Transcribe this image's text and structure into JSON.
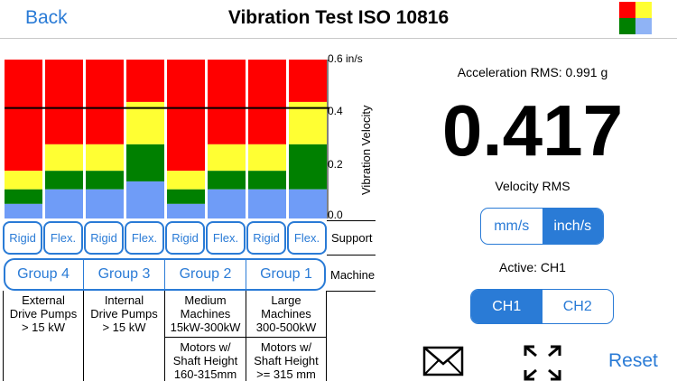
{
  "nav": {
    "back_label": "Back",
    "title": "Vibration Test ISO 10816"
  },
  "colors": {
    "accent": "#2a7bd6",
    "red": "#ff0000",
    "yellow": "#ffff33",
    "green": "#008000",
    "blue": "#6f9cf7"
  },
  "axis": {
    "ticks": [
      "0.6 in/s",
      "0.4",
      "0.2",
      "0.0"
    ],
    "label": "Vibration Velocity",
    "max": 0.6
  },
  "row_labels": {
    "support": "Support",
    "machine": "Machine"
  },
  "supports": [
    "Rigid",
    "Flex.",
    "Rigid",
    "Flex.",
    "Rigid",
    "Flex.",
    "Rigid",
    "Flex."
  ],
  "groups": [
    "Group 4",
    "Group 3",
    "Group 2",
    "Group 1"
  ],
  "group_desc": [
    [
      "External",
      "Drive Pumps",
      "> 15 kW"
    ],
    [
      "Internal",
      "Drive Pumps",
      "> 15 kW"
    ],
    [
      "Medium",
      "Machines",
      "15kW-300kW"
    ],
    [
      "Large",
      "Machines",
      "300-500kW"
    ]
  ],
  "group_desc2": [
    [
      "Motors w/",
      "Shaft Height",
      "160-315mm"
    ],
    [
      "Motors w/",
      "Shaft Height",
      ">= 315 mm"
    ]
  ],
  "chart_data": {
    "type": "bar",
    "unit": "in/s",
    "ylim": [
      0,
      0.6
    ],
    "measured_line": 0.417,
    "columns": [
      {
        "blue": 0.055,
        "green": 0.11,
        "yellow": 0.18
      },
      {
        "blue": 0.11,
        "green": 0.18,
        "yellow": 0.28
      },
      {
        "blue": 0.11,
        "green": 0.18,
        "yellow": 0.28
      },
      {
        "blue": 0.14,
        "green": 0.28,
        "yellow": 0.44
      },
      {
        "blue": 0.055,
        "green": 0.11,
        "yellow": 0.18
      },
      {
        "blue": 0.11,
        "green": 0.18,
        "yellow": 0.28
      },
      {
        "blue": 0.11,
        "green": 0.18,
        "yellow": 0.28
      },
      {
        "blue": 0.11,
        "green": 0.28,
        "yellow": 0.44
      }
    ]
  },
  "readout": {
    "accel_label": "Acceleration RMS: 0.991 g",
    "value": "0.417",
    "velocity_label": "Velocity RMS",
    "units": [
      "mm/s",
      "inch/s"
    ],
    "active_label": "Active: CH1",
    "channels": [
      "CH1",
      "CH2"
    ],
    "reset_label": "Reset"
  }
}
